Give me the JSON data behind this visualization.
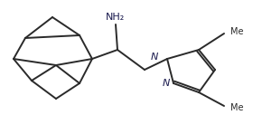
{
  "background": "#ffffff",
  "bond_color": "#2a2a2a",
  "lw": 1.4,
  "label_NH2": {
    "text": "NH₂",
    "fontsize": 8,
    "color": "#1a1a4e"
  },
  "label_N1": {
    "text": "N",
    "fontsize": 8,
    "color": "#1a1a4e"
  },
  "label_N2": {
    "text": "N",
    "fontsize": 8,
    "color": "#1a1a4e"
  },
  "label_Me1": {
    "text": "Me",
    "fontsize": 7,
    "color": "#2a2a2a"
  },
  "label_Me2": {
    "text": "Me",
    "fontsize": 7,
    "color": "#2a2a2a"
  }
}
